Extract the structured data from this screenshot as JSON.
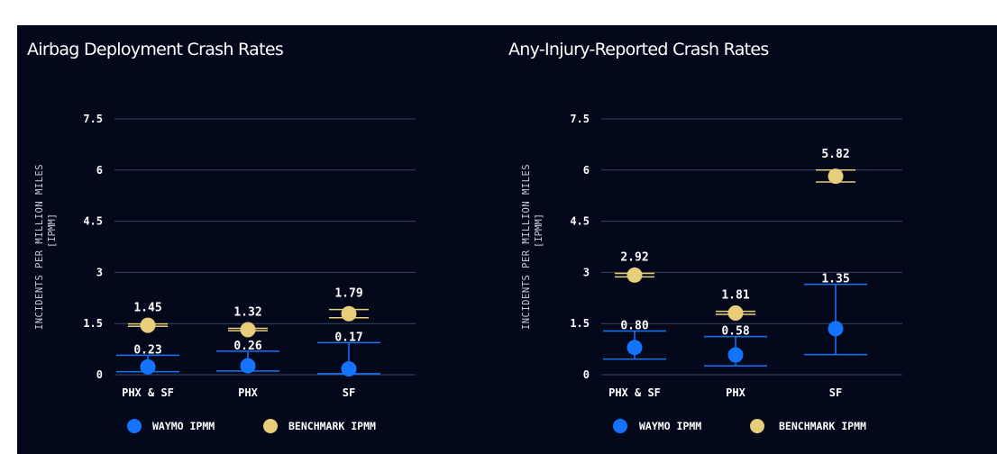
{
  "colors": {
    "background": "#03081a",
    "waymo": "#1473ff",
    "benchmark": "#e8cd7a",
    "grid": "#3b4560",
    "text": "#ffffff",
    "axis_text": "#c7ccd6"
  },
  "legend": {
    "waymo_label": "WAYMO IPMM",
    "benchmark_label": "BENCHMARK IPMM"
  },
  "chart_data": [
    {
      "type": "scatter",
      "title": "Airbag Deployment Crash Rates",
      "ylabel_line1": "INCIDENTS PER MILLION MILES",
      "ylabel_line2": "[IPMM]",
      "ylim": [
        0,
        7.5
      ],
      "yticks": [
        0,
        1.5,
        3,
        4.5,
        6,
        7.5
      ],
      "ytick_labels": [
        "0",
        "1.5",
        "3",
        "4.5",
        "6",
        "7.5"
      ],
      "categories": [
        "PHX & SF",
        "PHX",
        "SF"
      ],
      "grid": true,
      "legend_position": "bottom",
      "series": [
        {
          "name": "WAYMO IPMM",
          "values": [
            0.23,
            0.26,
            0.17
          ],
          "labels": [
            "0.23",
            "0.26",
            "0.17"
          ],
          "ci_low": [
            0.09,
            0.11,
            0.03
          ],
          "ci_high": [
            0.57,
            0.69,
            0.94
          ]
        },
        {
          "name": "BENCHMARK IPMM",
          "values": [
            1.45,
            1.32,
            1.79
          ],
          "labels": [
            "1.45",
            "1.32",
            "1.79"
          ],
          "ci_low": [
            1.42,
            1.29,
            1.67
          ],
          "ci_high": [
            1.49,
            1.36,
            1.91
          ]
        }
      ]
    },
    {
      "type": "scatter",
      "title": "Any-Injury-Reported Crash Rates",
      "ylabel_line1": "INCIDENTS PER MILLION MILES",
      "ylabel_line2": "[IPMM]",
      "ylim": [
        0,
        7.5
      ],
      "yticks": [
        0,
        1.5,
        3,
        4.5,
        6,
        7.5
      ],
      "ytick_labels": [
        "0",
        "1.5",
        "3",
        "4.5",
        "6",
        "7.5"
      ],
      "categories": [
        "PHX & SF",
        "PHX",
        "SF"
      ],
      "grid": true,
      "legend_position": "bottom",
      "series": [
        {
          "name": "WAYMO IPMM",
          "values": [
            0.8,
            0.58,
            1.35
          ],
          "labels": [
            "0.80",
            "0.58",
            "1.35"
          ],
          "ci_low": [
            0.46,
            0.26,
            0.59
          ],
          "ci_high": [
            1.28,
            1.12,
            2.65
          ]
        },
        {
          "name": "BENCHMARK IPMM",
          "values": [
            2.92,
            1.81,
            5.82
          ],
          "labels": [
            "2.92",
            "1.81",
            "5.82"
          ],
          "ci_low": [
            2.87,
            1.77,
            5.65
          ],
          "ci_high": [
            2.97,
            1.86,
            6.0
          ]
        }
      ]
    }
  ]
}
